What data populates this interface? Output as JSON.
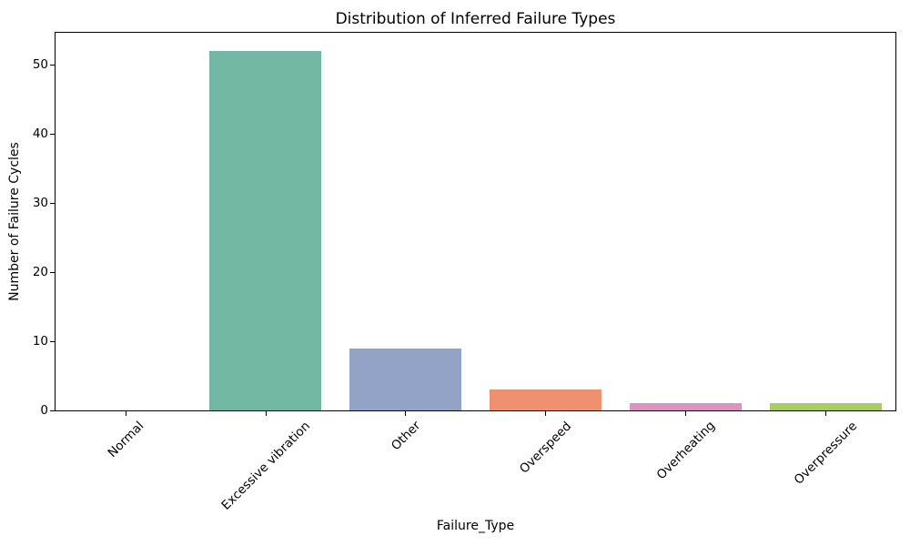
{
  "chart_data": {
    "type": "bar",
    "title": "Distribution of Inferred Failure Types",
    "xlabel": "Failure_Type",
    "ylabel": "Number of Failure Cycles",
    "categories": [
      "Normal",
      "Excessive vibration",
      "Other",
      "Overspeed",
      "Overheating",
      "Overpressure"
    ],
    "values": [
      0,
      52,
      9,
      3,
      1,
      1
    ],
    "bar_colors": [
      null,
      "#72b7a3",
      "#93a3c5",
      "#ee9171",
      "#db94c2",
      "#a8ce63"
    ],
    "yticks": [
      0,
      10,
      20,
      30,
      40,
      50
    ],
    "ylim": [
      0,
      54.6
    ],
    "xtick_rotation_deg": 45,
    "bar_width_fraction": 0.8,
    "grid": false,
    "legend": "none",
    "background_color": "#ffffff",
    "axis_color": "#000000"
  }
}
